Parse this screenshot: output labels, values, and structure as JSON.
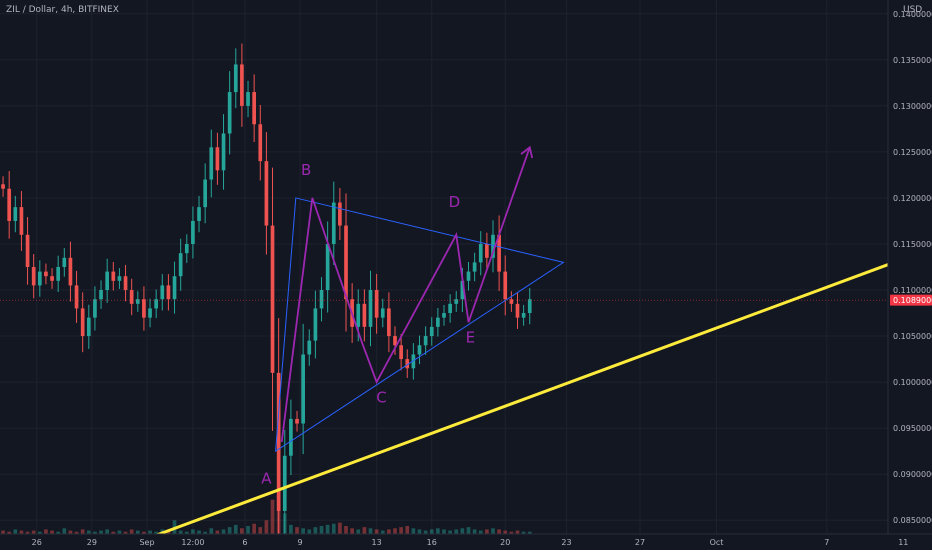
{
  "chart_data": {
    "type": "candlestick",
    "title": "ZIL / Dollar, 4h, BITFINEX",
    "currency": "USD",
    "y_ticks": [
      "0.14000000",
      "0.13500000",
      "0.13000000",
      "0.12500000",
      "0.12000000",
      "0.11500000",
      "0.11000000",
      "0.10500000",
      "0.10000000",
      "0.09500000",
      "0.09000000",
      "0.08500000"
    ],
    "x_ticks": [
      "26",
      "29",
      "Sep",
      "12:00",
      "6",
      "9",
      "13",
      "16",
      "20",
      "23",
      "27",
      "Oct",
      "7",
      "11"
    ],
    "last_price": "0.10890000",
    "last_price_value": 0.1089,
    "ylim": [
      0.0835,
      0.1415
    ],
    "x_range": [
      0,
      145
    ],
    "x_tick_positions": [
      6,
      15,
      24,
      31.5,
      40,
      49,
      61.5,
      70.5,
      82.5,
      92.5,
      104.5,
      117,
      135,
      147.5
    ],
    "up_color": "#26a69a",
    "down_color": "#ef5350",
    "closes": [
      0.121,
      0.1175,
      0.119,
      0.116,
      0.1125,
      0.1105,
      0.112,
      0.1115,
      0.111,
      0.1125,
      0.1135,
      0.1105,
      0.108,
      0.105,
      0.107,
      0.109,
      0.11,
      0.112,
      0.111,
      0.1115,
      0.11,
      0.1085,
      0.109,
      0.107,
      0.108,
      0.109,
      0.1105,
      0.109,
      0.1115,
      0.114,
      0.115,
      0.1175,
      0.119,
      0.122,
      0.1255,
      0.123,
      0.127,
      0.1315,
      0.1345,
      0.13,
      0.1315,
      0.128,
      0.124,
      0.117,
      0.101,
      0.086,
      0.092,
      0.096,
      0.0955,
      0.103,
      0.1045,
      0.108,
      0.11,
      0.115,
      0.1195,
      0.117,
      0.109,
      0.106,
      0.1085,
      0.106,
      0.11,
      0.107,
      0.108,
      0.105,
      0.104,
      0.1025,
      0.1015,
      0.103,
      0.104,
      0.105,
      0.106,
      0.107,
      0.1075,
      0.1085,
      0.109,
      0.111,
      0.112,
      0.113,
      0.115,
      0.1135,
      0.116,
      0.112,
      0.109,
      0.1085,
      0.107,
      0.1075,
      0.109
    ],
    "volumes": [
      3,
      2,
      4,
      3,
      2,
      3,
      2,
      4,
      3,
      2,
      5,
      3,
      2,
      4,
      3,
      2,
      3,
      4,
      2,
      3,
      2,
      4,
      3,
      2,
      3,
      2,
      4,
      3,
      12,
      3,
      2,
      4,
      3,
      2,
      5,
      3,
      4,
      6,
      8,
      5,
      7,
      9,
      6,
      12,
      30,
      35,
      18,
      8,
      6,
      5,
      4,
      6,
      7,
      8,
      9,
      10,
      7,
      5,
      4,
      6,
      5,
      4,
      3,
      4,
      5,
      6,
      7,
      5,
      4,
      3,
      4,
      5,
      4,
      3,
      4,
      5,
      6,
      4,
      3,
      4,
      5,
      4,
      3,
      2,
      3,
      2,
      2
    ]
  },
  "annotations": {
    "waves": [
      {
        "label": "A",
        "x": 43.5,
        "y": 0.089
      },
      {
        "label": "B",
        "x": 50,
        "y": 0.1225
      },
      {
        "label": "C",
        "x": 62.3,
        "y": 0.0978
      },
      {
        "label": "D",
        "x": 74.2,
        "y": 0.119
      },
      {
        "label": "E",
        "x": 76.8,
        "y": 0.1043
      }
    ],
    "wave_path": [
      [
        46,
        0.0935
      ],
      [
        51,
        0.12
      ],
      [
        59,
        0.1045
      ],
      [
        61.5,
        0.1
      ],
      [
        74.5,
        0.116
      ],
      [
        76.5,
        0.1065
      ],
      [
        86.5,
        0.1255
      ]
    ],
    "triangle": [
      [
        45,
        0.0925
      ],
      [
        48.3,
        0.12
      ],
      [
        92,
        0.113
      ]
    ],
    "trendline": [
      [
        24,
        0.083
      ],
      [
        148,
        0.1135
      ]
    ]
  }
}
